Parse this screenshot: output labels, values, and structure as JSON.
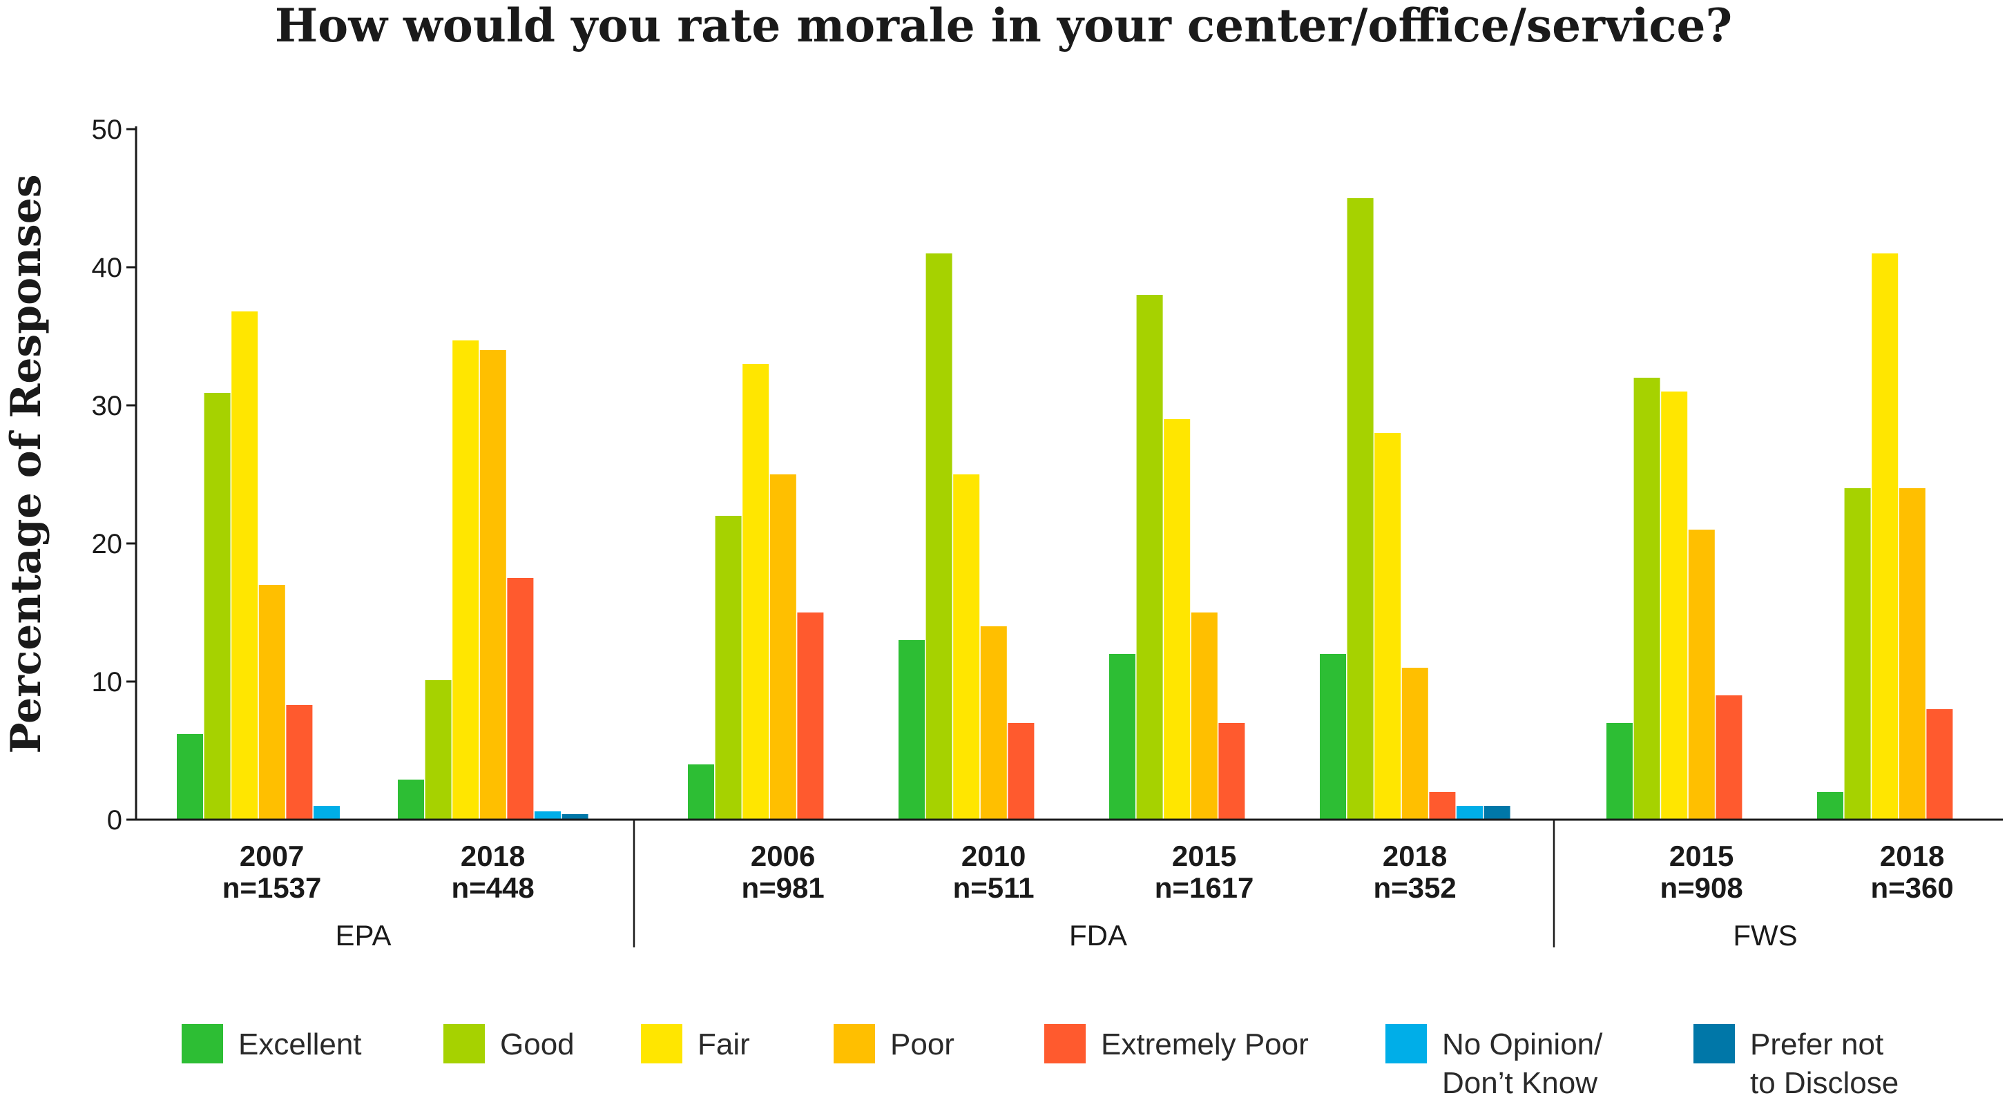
{
  "chart_data": {
    "type": "bar",
    "title": "How would you rate morale in your center/office/service?",
    "ylabel": "Percentage of Responses",
    "xlabel": "",
    "ylim": [
      0,
      50
    ],
    "yticks": [
      0,
      10,
      20,
      30,
      40,
      50
    ],
    "grid": false,
    "legend_position": "bottom",
    "categories": [
      {
        "year": "2007",
        "n": "n=1537",
        "group": "EPA"
      },
      {
        "year": "2018",
        "n": "n=448",
        "group": "EPA"
      },
      {
        "year": "2006",
        "n": "n=981",
        "group": "FDA"
      },
      {
        "year": "2010",
        "n": "n=511",
        "group": "FDA"
      },
      {
        "year": "2015",
        "n": "n=1617",
        "group": "FDA"
      },
      {
        "year": "2018",
        "n": "n=352",
        "group": "FDA"
      },
      {
        "year": "2015",
        "n": "n=908",
        "group": "FWS"
      },
      {
        "year": "2018",
        "n": "n=360",
        "group": "FWS"
      }
    ],
    "groups": [
      "EPA",
      "FDA",
      "FWS"
    ],
    "series": [
      {
        "name": "Excellent",
        "color": "#2dbe34",
        "values": [
          6.2,
          2.9,
          4,
          13,
          12,
          12,
          7,
          2
        ]
      },
      {
        "name": "Good",
        "color": "#a6d200",
        "values": [
          30.9,
          10.1,
          22,
          41,
          38,
          45,
          32,
          24
        ]
      },
      {
        "name": "Fair",
        "color": "#ffe600",
        "values": [
          36.8,
          34.7,
          33,
          25,
          29,
          28,
          31,
          41
        ]
      },
      {
        "name": "Poor",
        "color": "#ffbf00",
        "values": [
          17,
          34,
          25,
          14,
          15,
          11,
          21,
          24
        ]
      },
      {
        "name": "Extremely Poor",
        "color": "#ff5a2e",
        "values": [
          8.3,
          17.5,
          15,
          7,
          7,
          2,
          9,
          8
        ]
      },
      {
        "name": "No Opinion/ Don’t Know",
        "color": "#00aee8",
        "values": [
          1,
          0.6,
          0,
          0,
          0,
          1,
          0,
          0
        ]
      },
      {
        "name": "Prefer not to Disclose",
        "color": "#0077a8",
        "values": [
          0,
          0.4,
          0,
          0,
          0,
          1,
          0,
          0
        ]
      }
    ],
    "legend_lines": [
      [
        "Excellent"
      ],
      [
        "Good"
      ],
      [
        "Fair"
      ],
      [
        "Poor"
      ],
      [
        "Extremely Poor"
      ],
      [
        "No Opinion/",
        "Don’t Know"
      ],
      [
        "Prefer not",
        "to Disclose"
      ]
    ]
  }
}
